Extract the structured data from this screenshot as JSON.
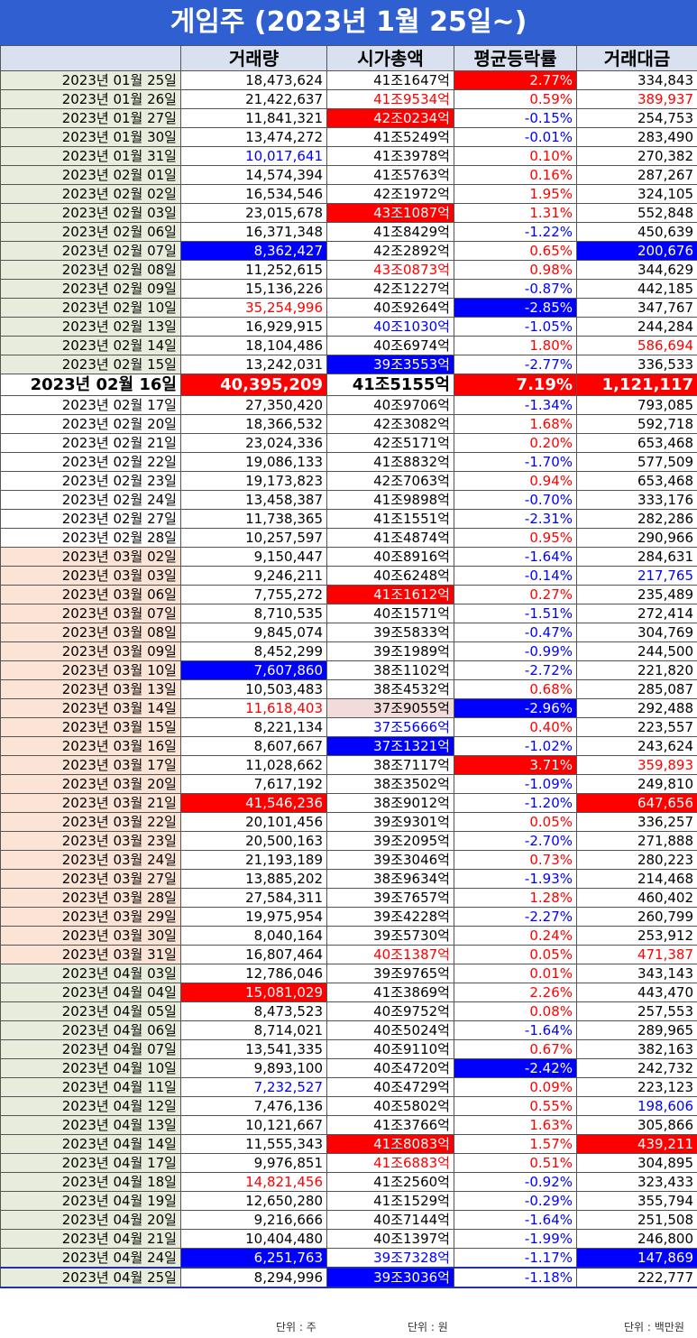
{
  "title": "게임주 (2023년 1월 25일~)",
  "headers": [
    "",
    "거래량",
    "시가총액",
    "평균등락률",
    "거래대금"
  ],
  "units": {
    "volume": "단위 : 주",
    "cap": "단위 : 원",
    "amount": "단위 : 백만원"
  },
  "colors": {
    "header_bg": "#2f5fd0",
    "red": "#ff0000",
    "blue": "#0000ff"
  },
  "rows": [
    {
      "date": "2023년 01월 25일",
      "volume": "18,473,624",
      "cap": "41조1647억",
      "rate": "2.77%",
      "amount": "334,843"
    },
    {
      "date": "2023년 01월 26일",
      "volume": "21,422,637",
      "cap": "41조9534억",
      "rate": "0.59%",
      "amount": "389,937"
    },
    {
      "date": "2023년 01월 27일",
      "volume": "11,841,321",
      "cap": "42조0234억",
      "rate": "-0.15%",
      "amount": "254,753"
    },
    {
      "date": "2023년 01월 30일",
      "volume": "13,474,272",
      "cap": "41조5249억",
      "rate": "-0.01%",
      "amount": "283,490"
    },
    {
      "date": "2023년 01월 31일",
      "volume": "10,017,641",
      "cap": "41조3978억",
      "rate": "0.10%",
      "amount": "270,382"
    },
    {
      "date": "2023년 02월 01일",
      "volume": "14,574,394",
      "cap": "41조5763억",
      "rate": "0.16%",
      "amount": "287,267"
    },
    {
      "date": "2023년 02월 02일",
      "volume": "16,534,546",
      "cap": "42조1972억",
      "rate": "1.95%",
      "amount": "324,105"
    },
    {
      "date": "2023년 02월 03일",
      "volume": "23,015,678",
      "cap": "43조1087억",
      "rate": "1.31%",
      "amount": "552,848"
    },
    {
      "date": "2023년 02월 06일",
      "volume": "16,371,348",
      "cap": "41조8429억",
      "rate": "-1.22%",
      "amount": "450,639"
    },
    {
      "date": "2023년 02월 07일",
      "volume": "8,362,427",
      "cap": "42조2892억",
      "rate": "0.65%",
      "amount": "200,676"
    },
    {
      "date": "2023년 02월 08일",
      "volume": "11,252,615",
      "cap": "43조0873억",
      "rate": "0.98%",
      "amount": "344,629"
    },
    {
      "date": "2023년 02월 09일",
      "volume": "15,136,226",
      "cap": "42조1227억",
      "rate": "-0.87%",
      "amount": "442,185"
    },
    {
      "date": "2023년 02월 10일",
      "volume": "35,254,996",
      "cap": "40조9264억",
      "rate": "-2.85%",
      "amount": "347,767"
    },
    {
      "date": "2023년 02월 13일",
      "volume": "16,929,915",
      "cap": "40조1030억",
      "rate": "-1.05%",
      "amount": "244,284"
    },
    {
      "date": "2023년 02월 14일",
      "volume": "18,104,486",
      "cap": "40조6974억",
      "rate": "1.80%",
      "amount": "586,694"
    },
    {
      "date": "2023년 02월 15일",
      "volume": "13,242,031",
      "cap": "39조3553억",
      "rate": "-2.77%",
      "amount": "336,533"
    },
    {
      "date": "2023년 02월 16일",
      "volume": "40,395,209",
      "cap": "41조5155억",
      "rate": "7.19%",
      "amount": "1,121,117"
    },
    {
      "date": "2023년 02월 17일",
      "volume": "27,350,420",
      "cap": "40조9706억",
      "rate": "-1.34%",
      "amount": "793,085"
    },
    {
      "date": "2023년 02월 20일",
      "volume": "18,366,532",
      "cap": "42조3082억",
      "rate": "1.68%",
      "amount": "592,718"
    },
    {
      "date": "2023년 02월 21일",
      "volume": "23,024,336",
      "cap": "42조5171억",
      "rate": "0.20%",
      "amount": "653,468"
    },
    {
      "date": "2023년 02월 22일",
      "volume": "19,086,133",
      "cap": "41조8832억",
      "rate": "-1.70%",
      "amount": "577,509"
    },
    {
      "date": "2023년 02월 23일",
      "volume": "19,173,823",
      "cap": "42조7063억",
      "rate": "0.94%",
      "amount": "653,468"
    },
    {
      "date": "2023년 02월 24일",
      "volume": "13,458,387",
      "cap": "41조9898억",
      "rate": "-0.70%",
      "amount": "333,176"
    },
    {
      "date": "2023년 02월 27일",
      "volume": "11,738,365",
      "cap": "41조1551억",
      "rate": "-2.31%",
      "amount": "282,286"
    },
    {
      "date": "2023년 02월 28일",
      "volume": "10,257,597",
      "cap": "41조4874억",
      "rate": "0.95%",
      "amount": "290,966"
    },
    {
      "date": "2023년 03월 02일",
      "volume": "9,150,447",
      "cap": "40조8916억",
      "rate": "-1.64%",
      "amount": "284,631"
    },
    {
      "date": "2023년 03월 03일",
      "volume": "9,246,211",
      "cap": "40조6248억",
      "rate": "-0.14%",
      "amount": "217,765"
    },
    {
      "date": "2023년 03월 06일",
      "volume": "7,755,272",
      "cap": "41조1612억",
      "rate": "0.27%",
      "amount": "235,489"
    },
    {
      "date": "2023년 03월 07일",
      "volume": "8,710,535",
      "cap": "40조1571억",
      "rate": "-1.51%",
      "amount": "272,414"
    },
    {
      "date": "2023년 03월 08일",
      "volume": "9,845,074",
      "cap": "39조5833억",
      "rate": "-0.47%",
      "amount": "304,769"
    },
    {
      "date": "2023년 03월 09일",
      "volume": "8,452,299",
      "cap": "39조1989억",
      "rate": "-0.99%",
      "amount": "244,500"
    },
    {
      "date": "2023년 03월 10일",
      "volume": "7,607,860",
      "cap": "38조1102억",
      "rate": "-2.72%",
      "amount": "221,820"
    },
    {
      "date": "2023년 03월 13일",
      "volume": "10,503,483",
      "cap": "38조4532억",
      "rate": "0.68%",
      "amount": "285,087"
    },
    {
      "date": "2023년 03월 14일",
      "volume": "11,618,403",
      "cap": "37조9055억",
      "rate": "-2.96%",
      "amount": "292,488"
    },
    {
      "date": "2023년 03월 15일",
      "volume": "8,221,134",
      "cap": "37조5666억",
      "rate": "0.40%",
      "amount": "223,557"
    },
    {
      "date": "2023년 03월 16일",
      "volume": "8,607,667",
      "cap": "37조1321억",
      "rate": "-1.02%",
      "amount": "243,624"
    },
    {
      "date": "2023년 03월 17일",
      "volume": "11,028,662",
      "cap": "38조7117억",
      "rate": "3.71%",
      "amount": "359,893"
    },
    {
      "date": "2023년 03월 20일",
      "volume": "7,617,192",
      "cap": "38조3502억",
      "rate": "-1.09%",
      "amount": "249,810"
    },
    {
      "date": "2023년 03월 21일",
      "volume": "41,546,236",
      "cap": "38조9012억",
      "rate": "-1.20%",
      "amount": "647,656"
    },
    {
      "date": "2023년 03월 22일",
      "volume": "20,101,456",
      "cap": "39조9301억",
      "rate": "0.05%",
      "amount": "336,257"
    },
    {
      "date": "2023년 03월 23일",
      "volume": "20,500,163",
      "cap": "39조2095억",
      "rate": "-2.70%",
      "amount": "271,888"
    },
    {
      "date": "2023년 03월 24일",
      "volume": "21,193,189",
      "cap": "39조3046억",
      "rate": "0.73%",
      "amount": "280,223"
    },
    {
      "date": "2023년 03월 27일",
      "volume": "13,885,202",
      "cap": "38조9634억",
      "rate": "-1.93%",
      "amount": "214,468"
    },
    {
      "date": "2023년 03월 28일",
      "volume": "27,584,311",
      "cap": "39조7657억",
      "rate": "1.28%",
      "amount": "460,402"
    },
    {
      "date": "2023년 03월 29일",
      "volume": "19,975,954",
      "cap": "39조4228억",
      "rate": "-2.27%",
      "amount": "260,799"
    },
    {
      "date": "2023년 03월 30일",
      "volume": "8,040,164",
      "cap": "39조5730억",
      "rate": "0.24%",
      "amount": "253,912"
    },
    {
      "date": "2023년 03월 31일",
      "volume": "16,807,464",
      "cap": "40조1387억",
      "rate": "0.05%",
      "amount": "471,387"
    },
    {
      "date": "2023년 04월 03일",
      "volume": "12,786,046",
      "cap": "39조9765억",
      "rate": "0.01%",
      "amount": "343,143"
    },
    {
      "date": "2023년 04월 04일",
      "volume": "15,081,029",
      "cap": "41조3869억",
      "rate": "2.26%",
      "amount": "443,470"
    },
    {
      "date": "2023년 04월 05일",
      "volume": "8,473,523",
      "cap": "40조9752억",
      "rate": "0.08%",
      "amount": "257,553"
    },
    {
      "date": "2023년 04월 06일",
      "volume": "8,714,021",
      "cap": "40조5024억",
      "rate": "-1.64%",
      "amount": "289,965"
    },
    {
      "date": "2023년 04월 07일",
      "volume": "13,541,335",
      "cap": "40조9110억",
      "rate": "0.67%",
      "amount": "382,163"
    },
    {
      "date": "2023년 04월 10일",
      "volume": "9,893,100",
      "cap": "40조4720억",
      "rate": "-2.42%",
      "amount": "242,732"
    },
    {
      "date": "2023년 04월 11일",
      "volume": "7,232,527",
      "cap": "40조4729억",
      "rate": "0.09%",
      "amount": "223,123"
    },
    {
      "date": "2023년 04월 12일",
      "volume": "7,476,136",
      "cap": "40조5802억",
      "rate": "0.55%",
      "amount": "198,606"
    },
    {
      "date": "2023년 04월 13일",
      "volume": "10,121,667",
      "cap": "41조3766억",
      "rate": "1.63%",
      "amount": "305,866"
    },
    {
      "date": "2023년 04월 14일",
      "volume": "11,555,343",
      "cap": "41조8083억",
      "rate": "1.57%",
      "amount": "439,211"
    },
    {
      "date": "2023년 04월 17일",
      "volume": "9,976,851",
      "cap": "41조6883억",
      "rate": "0.51%",
      "amount": "304,895"
    },
    {
      "date": "2023년 04월 18일",
      "volume": "14,821,456",
      "cap": "41조2560억",
      "rate": "-0.92%",
      "amount": "323,433"
    },
    {
      "date": "2023년 04월 19일",
      "volume": "12,650,280",
      "cap": "41조1529억",
      "rate": "-0.29%",
      "amount": "355,794"
    },
    {
      "date": "2023년 04월 20일",
      "volume": "9,216,666",
      "cap": "40조7144억",
      "rate": "-1.64%",
      "amount": "251,508"
    },
    {
      "date": "2023년 04월 21일",
      "volume": "10,404,480",
      "cap": "40조1397억",
      "rate": "-1.99%",
      "amount": "246,800"
    },
    {
      "date": "2023년 04월 24일",
      "volume": "6,251,763",
      "cap": "39조7328억",
      "rate": "-1.17%",
      "amount": "147,869"
    },
    {
      "date": "2023년 04월 25일",
      "volume": "8,294,996",
      "cap": "39조3036억",
      "rate": "-1.18%",
      "amount": "222,777"
    }
  ]
}
